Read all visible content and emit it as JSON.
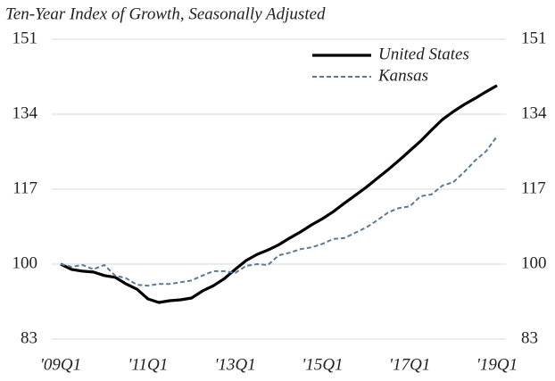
{
  "chart_data": {
    "type": "line",
    "title": "Ten-Year Index of Growth, Seasonally Adjusted",
    "categories": [
      "'09Q1",
      null,
      null,
      null,
      null,
      null,
      null,
      null,
      "'11Q1",
      null,
      null,
      null,
      null,
      null,
      null,
      null,
      "'13Q1",
      null,
      null,
      null,
      null,
      null,
      null,
      null,
      "'15Q1",
      null,
      null,
      null,
      null,
      null,
      null,
      null,
      "'17Q1",
      null,
      null,
      null,
      null,
      null,
      null,
      null,
      "'19Q1"
    ],
    "series": [
      {
        "name": "United States",
        "color": "#000000",
        "dash": "solid",
        "values": [
          100,
          98.8,
          98.4,
          98.2,
          97.4,
          97,
          95.5,
          94.3,
          92.1,
          91.3,
          91.7,
          91.9,
          92.3,
          93.9,
          95.1,
          96.7,
          98.8,
          100.8,
          102.2,
          103.2,
          104.4,
          105.9,
          107.3,
          108.9,
          110.3,
          111.9,
          113.8,
          115.6,
          117.4,
          119.4,
          121.4,
          123.5,
          125.7,
          127.9,
          130.4,
          132.8,
          134.6,
          136.2,
          137.6,
          139.1,
          140.5
        ]
      },
      {
        "name": "Kansas",
        "color": "#5b7a96",
        "dash": "dashed",
        "values": [
          100,
          99.4,
          99.8,
          98.8,
          99.8,
          97.4,
          96.8,
          95.3,
          95.1,
          95.5,
          95.5,
          95.9,
          96.3,
          97.4,
          98.4,
          98.4,
          98,
          99.6,
          100,
          99.8,
          102,
          102.6,
          103.4,
          103.8,
          104.6,
          105.7,
          105.9,
          107.1,
          108.3,
          109.9,
          111.7,
          112.7,
          113.1,
          115.4,
          115.8,
          117.8,
          118.6,
          120.9,
          123.5,
          125.6,
          129
        ]
      }
    ],
    "ylim": [
      83,
      151
    ],
    "yticks": [
      83,
      100,
      117,
      134,
      151
    ],
    "y2lim": [
      83,
      151
    ],
    "y2ticks": [
      83,
      100,
      117,
      134,
      151
    ],
    "grid": true,
    "legend": "upper right"
  }
}
